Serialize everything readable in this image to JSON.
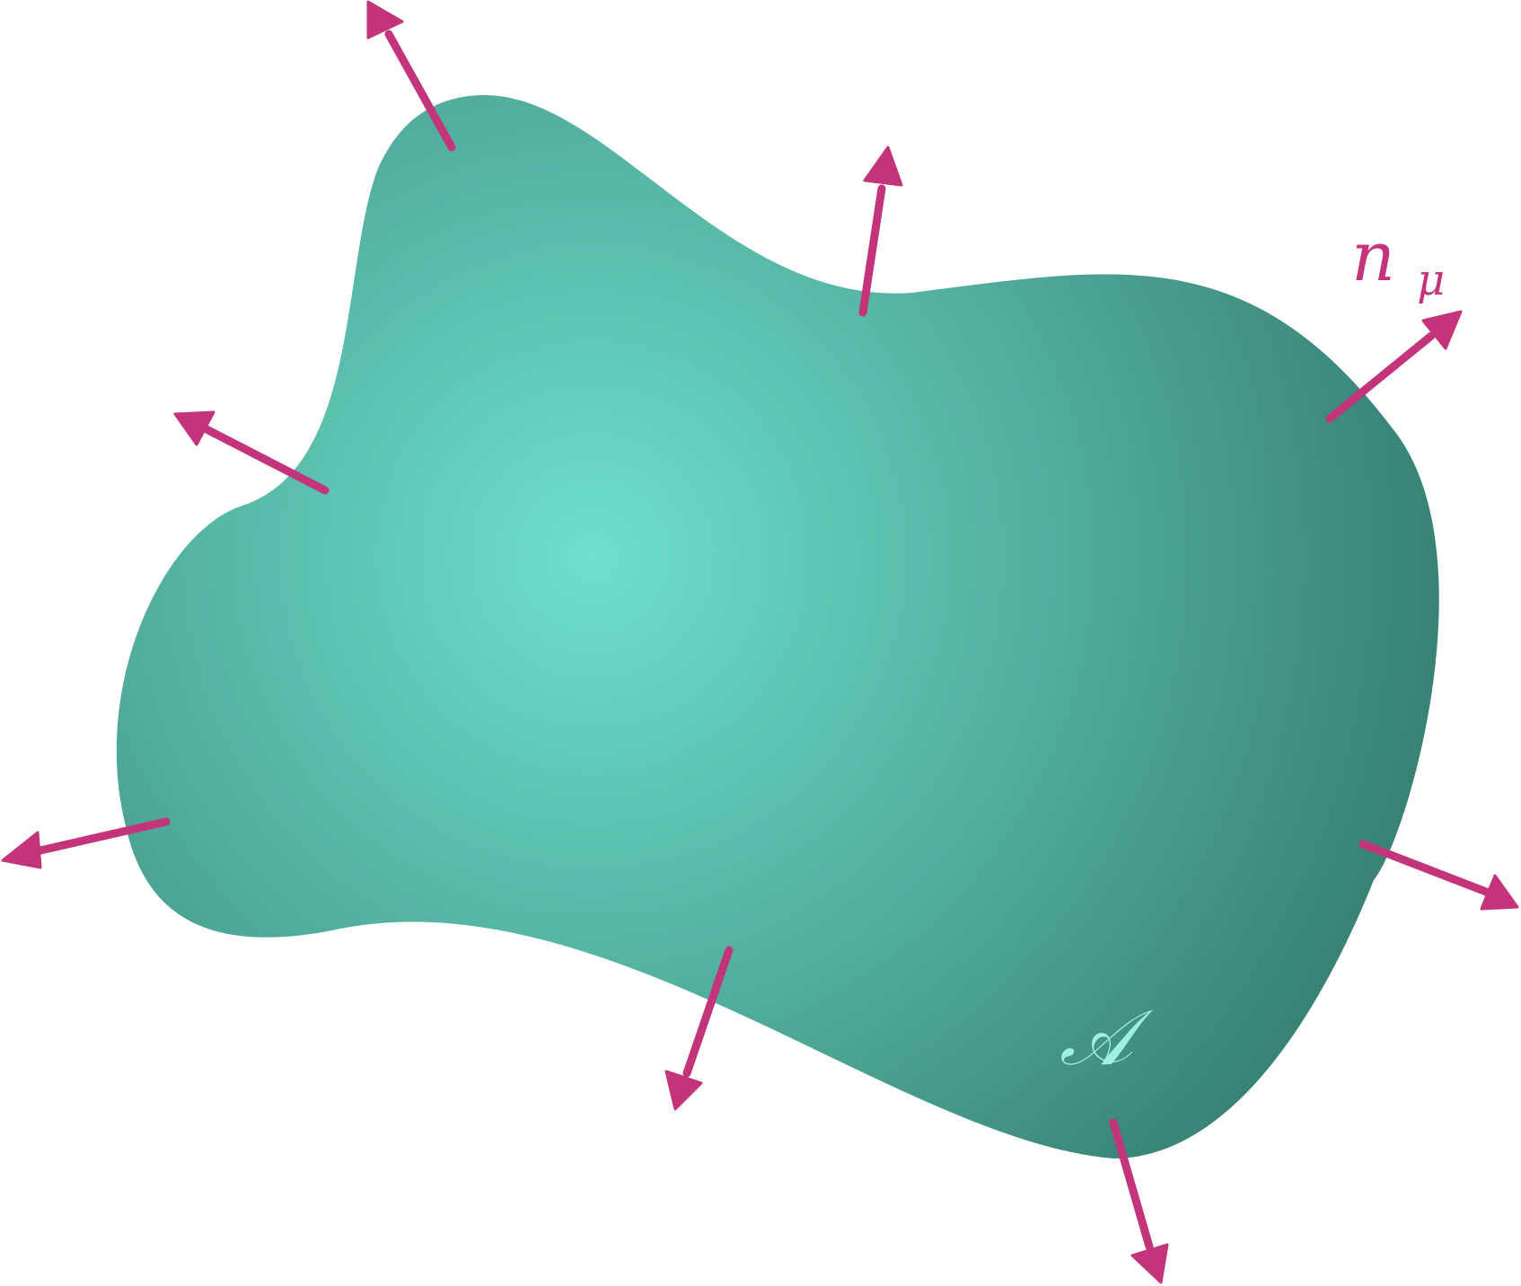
{
  "colors": {
    "region_center": "#6ee0cc",
    "region_mid": "#52ae9f",
    "region_edge": "#347a6f",
    "arrow": "#c3347a",
    "region_label": "#9df0e6"
  },
  "labels": {
    "normal_symbol": "n",
    "normal_subscript": "μ",
    "region_symbol": "𝒜"
  },
  "arrows": {
    "count": 9,
    "direction": "outward-normal"
  }
}
